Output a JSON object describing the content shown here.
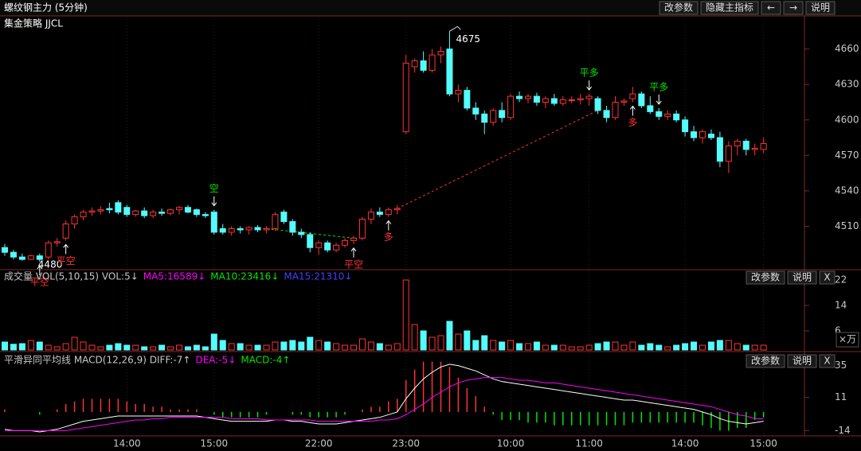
{
  "header": {
    "title": "螺纹钢主力 (5分钟)",
    "buttons": [
      "改参数",
      "隐藏主指标",
      "←",
      "→",
      "说明"
    ]
  },
  "chart_data": [
    {
      "type": "candlestick",
      "title": "集金策略 JJCL",
      "categories": [
        null,
        null,
        null,
        null,
        null,
        null,
        null,
        null,
        null,
        null,
        null,
        null,
        null,
        null,
        "14:00",
        null,
        null,
        null,
        null,
        null,
        null,
        null,
        null,
        null,
        "15:00",
        null,
        null,
        null,
        null,
        null,
        null,
        null,
        null,
        null,
        null,
        null,
        "22:00",
        null,
        null,
        null,
        null,
        null,
        null,
        null,
        null,
        null,
        "23:00",
        null,
        null,
        null,
        null,
        null,
        null,
        null,
        null,
        null,
        null,
        null,
        "10:00",
        null,
        null,
        null,
        null,
        null,
        null,
        null,
        null,
        "11:00",
        null,
        null,
        null,
        null,
        null,
        null,
        null,
        null,
        null,
        null,
        "14:00",
        null,
        null,
        null,
        null,
        null,
        null,
        null,
        null,
        "15:00"
      ],
      "open": [
        4492,
        4488,
        4484,
        4482,
        4485,
        4484,
        4496,
        4500,
        4512,
        4518,
        4522,
        4523,
        4525,
        4530,
        4526,
        4520,
        4523,
        4519,
        4522,
        4521,
        4524,
        4526,
        4524,
        4520,
        4522,
        4508,
        4505,
        4508,
        4507,
        4509,
        4507,
        4508,
        4522,
        4514,
        4505,
        4503,
        4492,
        4496,
        4490,
        4494,
        4498,
        4500,
        4516,
        4522,
        4520,
        4524,
        4590,
        4645,
        4650,
        4642,
        4655,
        4660,
        4622,
        4625,
        4610,
        4605,
        4598,
        4608,
        4602,
        4620,
        4618,
        4620,
        4615,
        4618,
        4614,
        4617,
        4617,
        4618,
        4618,
        4608,
        4602,
        4615,
        4618,
        4622,
        4612,
        4607,
        4603,
        4605,
        4600,
        4590,
        4585,
        4588,
        4585,
        4565,
        4578,
        4582,
        4575,
        4575
      ],
      "high": [
        4495,
        4490,
        4487,
        4486,
        4487,
        4498,
        4500,
        4515,
        4520,
        4524,
        4526,
        4527,
        4530,
        4532,
        4528,
        4524,
        4526,
        4524,
        4525,
        4525,
        4527,
        4528,
        4525,
        4522,
        4524,
        4512,
        4510,
        4510,
        4510,
        4511,
        4510,
        4522,
        4524,
        4516,
        4508,
        4505,
        4498,
        4498,
        4496,
        4500,
        4502,
        4518,
        4525,
        4526,
        4526,
        4528,
        4655,
        4652,
        4658,
        4660,
        4662,
        4675,
        4630,
        4628,
        4615,
        4608,
        4610,
        4615,
        4622,
        4624,
        4622,
        4623,
        4620,
        4622,
        4620,
        4620,
        4622,
        4622,
        4620,
        4612,
        4620,
        4618,
        4628,
        4624,
        4620,
        4610,
        4608,
        4608,
        4603,
        4595,
        4592,
        4592,
        4590,
        4582,
        4584,
        4584,
        4580,
        4585
      ],
      "low": [
        4485,
        4482,
        4481,
        4482,
        4480,
        4482,
        4493,
        4498,
        4508,
        4515,
        4519,
        4520,
        4521,
        4520,
        4518,
        4518,
        4517,
        4517,
        4519,
        4519,
        4520,
        4521,
        4518,
        4517,
        4503,
        4503,
        4502,
        4504,
        4503,
        4505,
        4504,
        4506,
        4512,
        4502,
        4500,
        4488,
        4486,
        4488,
        4488,
        4492,
        4495,
        4498,
        4512,
        4518,
        4518,
        4520,
        4588,
        4640,
        4640,
        4640,
        4648,
        4620,
        4615,
        4608,
        4600,
        4588,
        4595,
        4598,
        4600,
        4615,
        4614,
        4612,
        4610,
        4612,
        4612,
        4614,
        4613,
        4612,
        4605,
        4598,
        4600,
        4612,
        4615,
        4610,
        4605,
        4600,
        4600,
        4598,
        4586,
        4582,
        4580,
        4583,
        4560,
        4555,
        4570,
        4570,
        4570,
        4572
      ],
      "close": [
        4488,
        4484,
        4482,
        4485,
        4482,
        4496,
        4497,
        4512,
        4518,
        4522,
        4523,
        4524,
        4524,
        4522,
        4520,
        4523,
        4519,
        4522,
        4521,
        4524,
        4526,
        4522,
        4520,
        4519,
        4505,
        4505,
        4508,
        4507,
        4509,
        4507,
        4508,
        4520,
        4514,
        4505,
        4503,
        4492,
        4496,
        4490,
        4494,
        4498,
        4500,
        4516,
        4522,
        4520,
        4524,
        4525,
        4648,
        4650,
        4642,
        4655,
        4658,
        4622,
        4625,
        4610,
        4605,
        4598,
        4608,
        4602,
        4620,
        4618,
        4620,
        4615,
        4618,
        4614,
        4617,
        4617,
        4618,
        4620,
        4608,
        4602,
        4615,
        4616,
        4622,
        4612,
        4607,
        4603,
        4605,
        4600,
        4590,
        4585,
        4590,
        4585,
        4565,
        4578,
        4582,
        4575,
        4576,
        4580
      ],
      "up_color": "#ff3232",
      "down_color": "#54fcfc",
      "ylim": [
        4474,
        4688
      ],
      "yticks": [
        4510,
        4540,
        4570,
        4600,
        4630,
        4660
      ],
      "annotations": [
        {
          "index": 4,
          "text": "平空",
          "dir": "up",
          "color": "#ff3232"
        },
        {
          "index": 7,
          "text": "平空",
          "dir": "up",
          "color": "#ff3232"
        },
        {
          "index": 24,
          "text": "空",
          "dir": "down",
          "color": "#00e600"
        },
        {
          "index": 40,
          "text": "平空",
          "dir": "up",
          "color": "#ff3232"
        },
        {
          "index": 44,
          "text": "多",
          "dir": "up",
          "color": "#ff3232"
        },
        {
          "index": 67,
          "text": "平多",
          "dir": "down",
          "color": "#00e600"
        },
        {
          "index": 72,
          "text": "多",
          "dir": "up",
          "color": "#ff3232"
        },
        {
          "index": 75,
          "text": "平多",
          "dir": "down",
          "color": "#00e600"
        }
      ],
      "trend_lines": [
        {
          "from": 30,
          "to": 40,
          "color": "#00e600"
        },
        {
          "from": 45,
          "to": 68,
          "color": "#ff3232"
        }
      ]
    },
    {
      "type": "volume",
      "legend": [
        {
          "text": "成交量 VOL(5,10,15) VOL:5↓",
          "color": "#c8c8c8"
        },
        {
          "text": "MA5:16589↓",
          "color": "#ff00ff"
        },
        {
          "text": "MA10:23416↓",
          "color": "#00e600"
        },
        {
          "text": "MA15:21310↓",
          "color": "#4040ff"
        }
      ],
      "buttons": [
        "改参数",
        "说明",
        "X"
      ],
      "unit": "×万",
      "values": [
        2.5,
        1.8,
        2,
        3,
        2.5,
        1.5,
        1,
        2,
        4,
        2.5,
        1.5,
        1,
        1.5,
        2,
        1.5,
        1.5,
        1,
        1,
        1.5,
        1,
        1.5,
        1,
        1.5,
        1,
        5,
        3,
        2,
        2,
        1.5,
        1.5,
        1.5,
        2.5,
        2.5,
        3,
        2.5,
        4,
        3,
        2.5,
        2,
        1.5,
        1.5,
        3.5,
        2.5,
        2,
        1.5,
        2,
        22,
        8,
        6,
        4,
        4.5,
        9,
        5,
        6,
        3,
        4.5,
        3,
        2.5,
        3,
        2,
        2,
        2.5,
        1.5,
        1.5,
        1.5,
        1,
        1,
        1.5,
        2,
        2.5,
        2.5,
        1.5,
        2.5,
        1.5,
        2,
        1.5,
        1,
        1.5,
        2,
        2.5,
        1.5,
        2.5,
        3,
        3,
        2,
        1.5,
        1.5,
        1.5
      ],
      "ylim": [
        0,
        25
      ],
      "yticks": [
        6,
        14,
        22
      ]
    },
    {
      "type": "macd",
      "legend": [
        {
          "text": "平滑异同平均线 MACD(12,26,9) DIFF:-7↑",
          "color": "#c8c8c8"
        },
        {
          "text": "DEA:-5↓",
          "color": "#ff00ff"
        },
        {
          "text": "MACD:-4↑",
          "color": "#00e600"
        }
      ],
      "buttons": [
        "改参数",
        "说明",
        "X"
      ],
      "series": [
        {
          "color": "#ffffff",
          "values": [
            -13,
            -14,
            -14,
            -14,
            -15,
            -14,
            -13,
            -11,
            -9,
            -7,
            -6,
            -5,
            -4,
            -3,
            -3,
            -3,
            -3,
            -3,
            -3,
            -3,
            -3,
            -3,
            -3,
            -4,
            -5,
            -6,
            -7,
            -7,
            -7,
            -7,
            -7,
            -6,
            -6,
            -7,
            -7,
            -8,
            -9,
            -9,
            -9,
            -8,
            -7,
            -6,
            -5,
            -4,
            -2,
            0,
            10,
            18,
            25,
            30,
            34,
            36,
            35,
            33,
            31,
            28,
            25,
            23,
            22,
            21,
            20,
            19,
            18,
            17,
            16,
            15,
            14,
            13,
            12,
            11,
            10,
            9,
            9,
            8,
            7,
            6,
            5,
            4,
            3,
            2,
            0,
            -2,
            -5,
            -7,
            -8,
            -9,
            -8,
            -7
          ]
        },
        {
          "color": "#ff00ff",
          "values": [
            -14,
            -14,
            -14,
            -14,
            -14,
            -14,
            -14,
            -14,
            -13,
            -12,
            -11,
            -10,
            -9,
            -8,
            -7,
            -6,
            -6,
            -5,
            -5,
            -4,
            -4,
            -4,
            -4,
            -4,
            -4,
            -4,
            -5,
            -5,
            -5,
            -5,
            -6,
            -6,
            -6,
            -6,
            -6,
            -6,
            -7,
            -7,
            -7,
            -7,
            -7,
            -7,
            -7,
            -6,
            -6,
            -5,
            -2,
            2,
            6,
            11,
            15,
            19,
            22,
            24,
            25,
            26,
            26,
            26,
            25,
            24,
            24,
            23,
            22,
            22,
            21,
            20,
            19,
            18,
            17,
            16,
            15,
            14,
            13,
            12,
            11,
            10,
            9,
            8,
            7,
            6,
            5,
            4,
            2,
            0,
            -2,
            -3,
            -5,
            -5
          ]
        }
      ],
      "histogram": {
        "values": [
          2,
          0,
          0,
          0,
          -2,
          0,
          2,
          6,
          8,
          10,
          10,
          10,
          10,
          10,
          8,
          6,
          6,
          4,
          4,
          2,
          2,
          2,
          2,
          0,
          -2,
          -4,
          -4,
          -4,
          -4,
          -4,
          -2,
          0,
          0,
          -2,
          -2,
          -4,
          -4,
          -4,
          -4,
          -2,
          0,
          2,
          4,
          4,
          8,
          10,
          24,
          32,
          38,
          38,
          38,
          34,
          26,
          18,
          12,
          4,
          -2,
          -6,
          -6,
          -6,
          -8,
          -8,
          -8,
          -10,
          -10,
          -10,
          -10,
          -10,
          -10,
          -10,
          -10,
          -10,
          -8,
          -8,
          -8,
          -8,
          -8,
          -8,
          -8,
          -8,
          -10,
          -12,
          -14,
          -14,
          -12,
          -12,
          -6,
          -4
        ],
        "pos_color": "#ff3232",
        "neg_color": "#00e600"
      },
      "ylim": [
        -18,
        45
      ],
      "yticks": [
        35,
        11,
        -14
      ]
    }
  ]
}
